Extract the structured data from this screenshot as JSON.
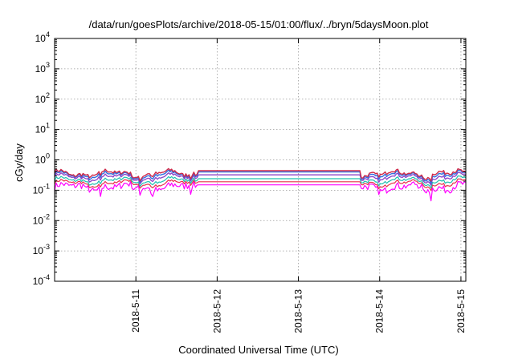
{
  "chart_data": {
    "type": "line",
    "title": "/data/run/goesPlots/archive/2018-05-15/01:00/flux/../bryn/5daysMoon.plot",
    "xlabel": "Coordinated Universal Time (UTC)",
    "ylabel": "cGy/day",
    "yscale": "log",
    "ylim": [
      0.0001,
      10000
    ],
    "xlim": [
      0,
      5.06
    ],
    "grid": true,
    "y_ticks": [
      {
        "value": 0.0001,
        "base": "10",
        "exp": "-4"
      },
      {
        "value": 0.001,
        "base": "10",
        "exp": "-3"
      },
      {
        "value": 0.01,
        "base": "10",
        "exp": "-2"
      },
      {
        "value": 0.1,
        "base": "10",
        "exp": "-1"
      },
      {
        "value": 1,
        "base": "10",
        "exp": "0"
      },
      {
        "value": 10,
        "base": "10",
        "exp": "1"
      },
      {
        "value": 100,
        "base": "10",
        "exp": "2"
      },
      {
        "value": 1000,
        "base": "10",
        "exp": "3"
      },
      {
        "value": 10000,
        "base": "10",
        "exp": "4"
      }
    ],
    "x_ticks": [
      {
        "value": 1,
        "label": "2018-5-11"
      },
      {
        "value": 2,
        "label": "2018-5-12"
      },
      {
        "value": 3,
        "label": "2018-5-13"
      },
      {
        "value": 4,
        "label": "2018-5-14"
      },
      {
        "value": 5,
        "label": "2018-5-15"
      }
    ],
    "flat_interval": [
      1.77,
      3.77
    ],
    "series": [
      {
        "color": "#ff00ff",
        "level": 0.13,
        "flat": 0.15,
        "noise": 0.55,
        "width": 1.2
      },
      {
        "color": "#e8304a",
        "level": 0.17,
        "flat": 0.19,
        "noise": 0.25,
        "width": 1.2
      },
      {
        "color": "#20c0b0",
        "level": 0.21,
        "flat": 0.24,
        "noise": 0.25,
        "width": 1.2
      },
      {
        "color": "#8a40c8",
        "level": 0.27,
        "flat": 0.32,
        "noise": 0.28,
        "width": 1.3
      },
      {
        "color": "#3070e0",
        "level": 0.32,
        "flat": 0.4,
        "noise": 0.3,
        "width": 1.4
      },
      {
        "color": "#d02a4a",
        "level": 0.36,
        "flat": 0.44,
        "noise": 0.3,
        "width": 1.4
      }
    ]
  }
}
